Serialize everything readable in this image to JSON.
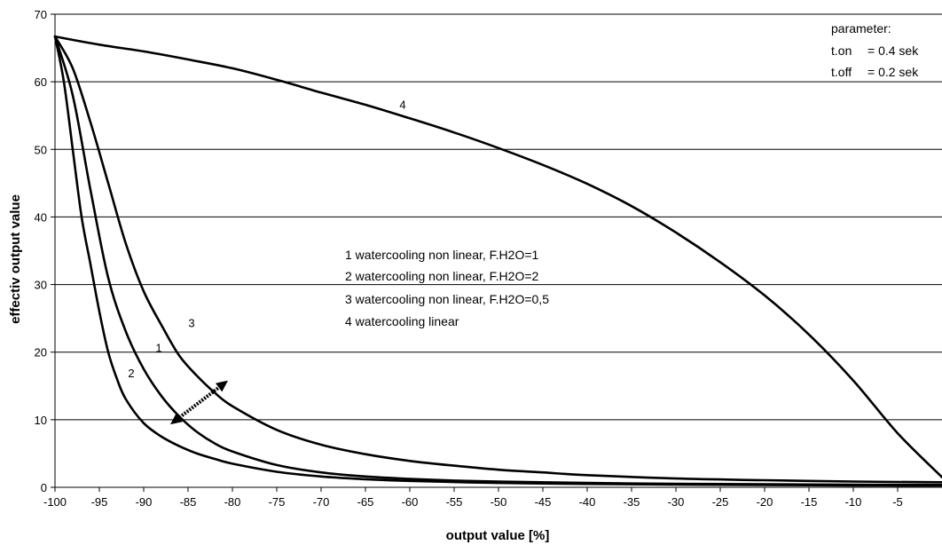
{
  "chart_data": {
    "type": "line",
    "title": "",
    "xlabel": "output value [%]",
    "ylabel": "effectiv output value",
    "xlim": [
      -100,
      0
    ],
    "ylim": [
      0,
      70
    ],
    "x_ticks": [
      -100,
      -95,
      -90,
      -85,
      -80,
      -75,
      -70,
      -65,
      -60,
      -55,
      -50,
      -45,
      -40,
      -35,
      -30,
      -25,
      -20,
      -15,
      -10,
      -5
    ],
    "y_ticks": [
      0,
      10,
      20,
      30,
      40,
      50,
      60,
      70
    ],
    "grid": "horizontal",
    "legend_placement": "center",
    "legend": [
      "1 watercooling non linear, F.H2O=1",
      "2 watercooling non linear, F.H2O=2",
      "3 watercooling non linear, F.H2O=0,5",
      "4 watercooling linear"
    ],
    "parameters": {
      "title": "parameter:",
      "rows": [
        {
          "name": "t.on",
          "value": "= 0.4 sek"
        },
        {
          "name": "t.off",
          "value": "= 0.2 sek"
        }
      ]
    },
    "series": [
      {
        "name": "1",
        "label_at": {
          "x": -88.3,
          "y": 20
        },
        "points": [
          [
            -100,
            66.7
          ],
          [
            -98,
            58
          ],
          [
            -96,
            44
          ],
          [
            -94,
            31
          ],
          [
            -92,
            23
          ],
          [
            -90,
            17.5
          ],
          [
            -88,
            13.5
          ],
          [
            -86,
            10.5
          ],
          [
            -84,
            8.2
          ],
          [
            -82,
            6.5
          ],
          [
            -80,
            5.3
          ],
          [
            -75,
            3.3
          ],
          [
            -70,
            2.2
          ],
          [
            -65,
            1.6
          ],
          [
            -60,
            1.25
          ],
          [
            -55,
            1.0
          ],
          [
            -50,
            0.85
          ],
          [
            -40,
            0.65
          ],
          [
            -30,
            0.52
          ],
          [
            -20,
            0.45
          ],
          [
            -10,
            0.4
          ],
          [
            0,
            0.35
          ]
        ]
      },
      {
        "name": "2",
        "label_at": {
          "x": -91.4,
          "y": 16.3
        },
        "points": [
          [
            -100,
            66.7
          ],
          [
            -99,
            60
          ],
          [
            -98,
            50
          ],
          [
            -97,
            40
          ],
          [
            -96,
            33
          ],
          [
            -95,
            26
          ],
          [
            -94,
            20
          ],
          [
            -93,
            16
          ],
          [
            -92,
            13
          ],
          [
            -90,
            9.5
          ],
          [
            -88,
            7.5
          ],
          [
            -86,
            6.1
          ],
          [
            -84,
            5
          ],
          [
            -82,
            4.2
          ],
          [
            -80,
            3.5
          ],
          [
            -75,
            2.3
          ],
          [
            -70,
            1.6
          ],
          [
            -65,
            1.2
          ],
          [
            -60,
            0.95
          ],
          [
            -50,
            0.65
          ],
          [
            -40,
            0.5
          ],
          [
            -30,
            0.4
          ],
          [
            -20,
            0.33
          ],
          [
            -10,
            0.28
          ],
          [
            0,
            0.25
          ]
        ]
      },
      {
        "name": "3",
        "label_at": {
          "x": -84.6,
          "y": 23.7
        },
        "points": [
          [
            -100,
            66.7
          ],
          [
            -98,
            62
          ],
          [
            -96,
            54
          ],
          [
            -94,
            45
          ],
          [
            -92,
            36
          ],
          [
            -90,
            29
          ],
          [
            -88,
            24
          ],
          [
            -86,
            19.5
          ],
          [
            -84,
            16.5
          ],
          [
            -82,
            14
          ],
          [
            -80,
            12
          ],
          [
            -75,
            8.5
          ],
          [
            -70,
            6.3
          ],
          [
            -65,
            4.9
          ],
          [
            -60,
            3.9
          ],
          [
            -55,
            3.2
          ],
          [
            -50,
            2.6
          ],
          [
            -45,
            2.2
          ],
          [
            -40,
            1.8
          ],
          [
            -30,
            1.3
          ],
          [
            -20,
            1.05
          ],
          [
            -10,
            0.85
          ],
          [
            0,
            0.75
          ]
        ]
      },
      {
        "name": "4",
        "label_at": {
          "x": -60.8,
          "y": 56
        },
        "points": [
          [
            -100,
            66.7
          ],
          [
            -95,
            65.5
          ],
          [
            -90,
            64.5
          ],
          [
            -85,
            63.3
          ],
          [
            -80,
            62
          ],
          [
            -75,
            60.3
          ],
          [
            -70,
            58.4
          ],
          [
            -65,
            56.6
          ],
          [
            -60,
            54.6
          ],
          [
            -55,
            52.5
          ],
          [
            -50,
            50.2
          ],
          [
            -45,
            47.7
          ],
          [
            -40,
            44.9
          ],
          [
            -35,
            41.6
          ],
          [
            -30,
            37.7
          ],
          [
            -25,
            33.3
          ],
          [
            -20,
            28.4
          ],
          [
            -15,
            22.6
          ],
          [
            -10,
            15.8
          ],
          [
            -5,
            8
          ],
          [
            0,
            1.5
          ]
        ]
      }
    ],
    "arrow": {
      "from": [
        -87,
        9.3
      ],
      "to": [
        -80.5,
        15.8
      ]
    }
  }
}
